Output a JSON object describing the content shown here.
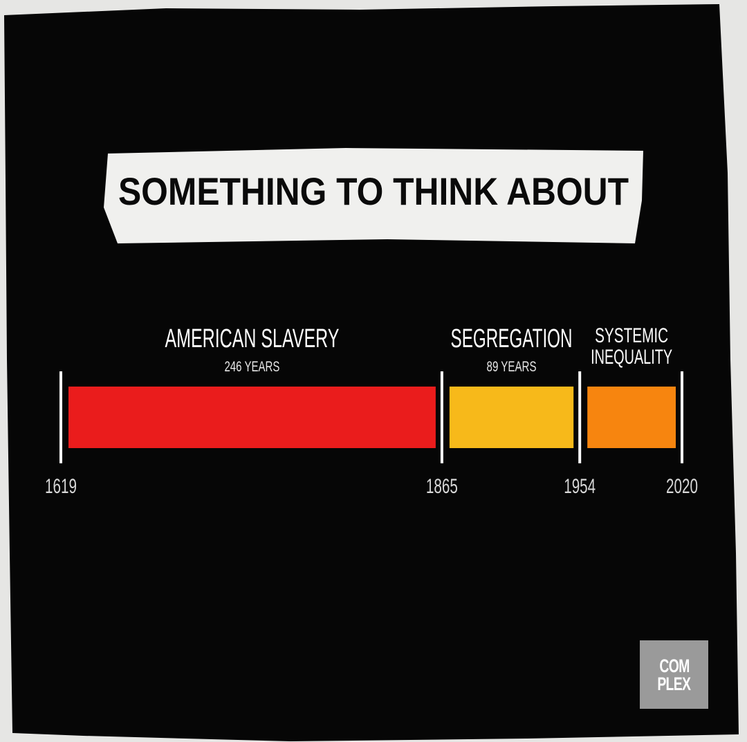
{
  "title": "SOMETHING TO THINK ABOUT",
  "colors": {
    "background": "#060606",
    "paper": "#e6e6e4",
    "slavery": "#ea1c1c",
    "segregation": "#f7b91a",
    "systemic": "#f7850f",
    "tick": "#ffffff"
  },
  "logo": {
    "line1": "COM",
    "line2": "PLEX"
  },
  "chart_data": {
    "type": "bar",
    "title": "SOMETHING TO THINK ABOUT",
    "orientation": "horizontal-timeline",
    "x_range": [
      1619,
      2020
    ],
    "ticks": [
      1619,
      1865,
      1954,
      2020
    ],
    "tick_labels": [
      "1619",
      "1865",
      "1954",
      "2020"
    ],
    "segments": [
      {
        "label": "AMERICAN SLAVERY",
        "sublabel": "246 YEARS",
        "start": 1619,
        "end": 1865,
        "value": 246,
        "color": "#ea1c1c"
      },
      {
        "label": "SEGREGATION",
        "sublabel": "89 YEARS",
        "start": 1865,
        "end": 1954,
        "value": 89,
        "color": "#f7b91a"
      },
      {
        "label": "SYSTEMIC\nINEQUALITY",
        "sublabel": "",
        "start": 1954,
        "end": 2020,
        "value": 66,
        "color": "#f7850f"
      }
    ],
    "grid": false,
    "legend": "none"
  }
}
